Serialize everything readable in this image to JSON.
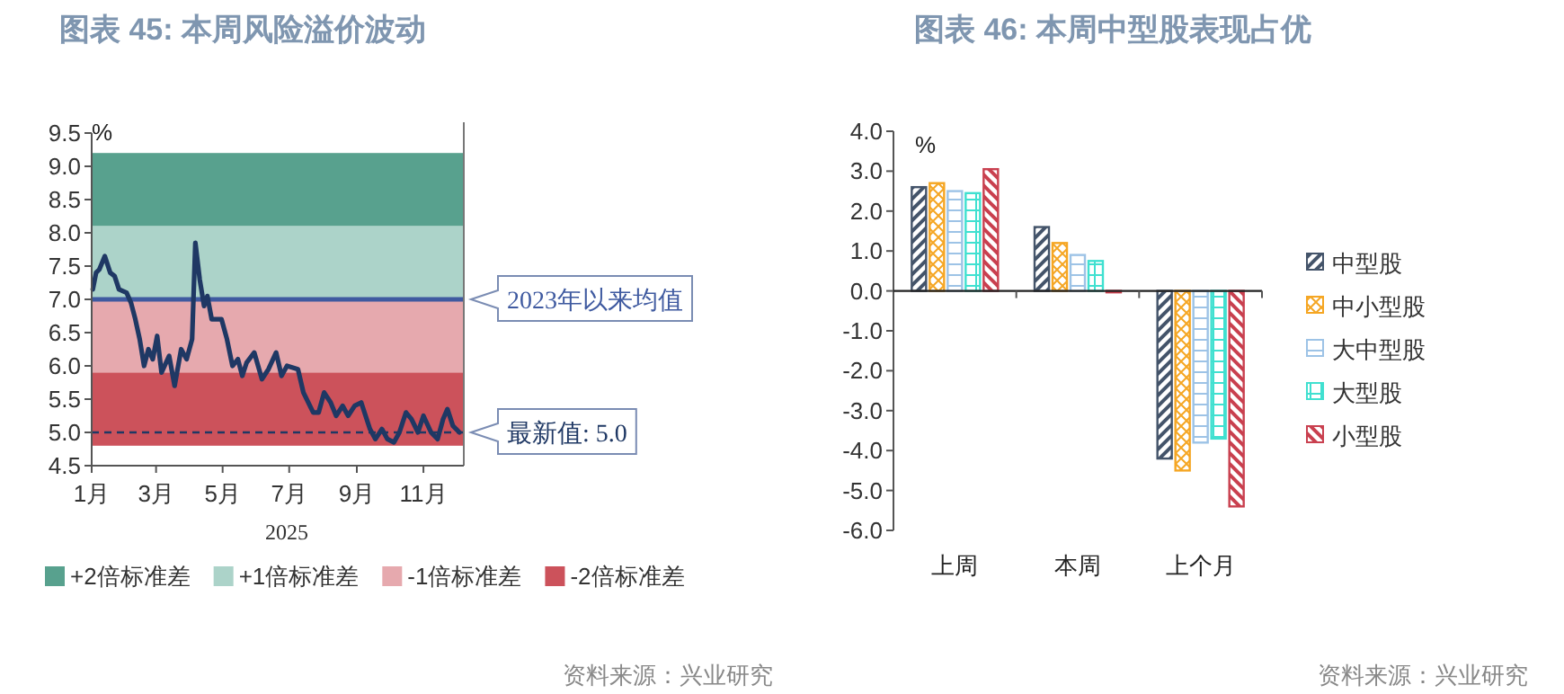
{
  "chart_data": [
    {
      "type": "line",
      "title": "图表 45: 本周风险溢价波动",
      "xlabel": "2025",
      "annotations": [
        "%",
        "资料来源：兴业研究"
      ],
      "x": [
        "2025-01-02",
        "2025-01-05",
        "2025-01-08",
        "2025-01-13",
        "2025-01-18",
        "2025-01-22",
        "2025-01-26",
        "2025-02-02",
        "2025-02-06",
        "2025-02-10",
        "2025-02-14",
        "2025-02-18",
        "2025-02-22",
        "2025-02-26",
        "2025-03-02",
        "2025-03-06",
        "2025-03-13",
        "2025-03-18",
        "2025-03-24",
        "2025-03-29",
        "2025-04-03",
        "2025-04-06",
        "2025-04-10",
        "2025-04-14",
        "2025-04-17",
        "2025-04-21",
        "2025-04-30",
        "2025-05-05",
        "2025-05-10",
        "2025-05-15",
        "2025-05-19",
        "2025-05-23",
        "2025-05-30",
        "2025-06-06",
        "2025-06-12",
        "2025-06-19",
        "2025-06-24",
        "2025-06-29",
        "2025-07-09",
        "2025-07-14",
        "2025-07-23",
        "2025-07-28",
        "2025-08-02",
        "2025-08-08",
        "2025-08-13",
        "2025-08-19",
        "2025-08-24",
        "2025-08-30",
        "2025-09-05",
        "2025-09-13",
        "2025-09-18",
        "2025-09-24",
        "2025-09-29",
        "2025-10-05",
        "2025-10-10",
        "2025-10-16",
        "2025-10-21",
        "2025-10-27",
        "2025-11-01",
        "2025-11-08",
        "2025-11-14",
        "2025-11-19",
        "2025-11-23",
        "2025-11-28",
        "2025-12-04"
      ],
      "series": [
        {
          "color": "#1f3864",
          "values": [
            7.15,
            7.4,
            7.45,
            7.65,
            7.4,
            7.35,
            7.15,
            7.1,
            6.95,
            6.7,
            6.4,
            6.0,
            6.25,
            6.1,
            6.45,
            5.9,
            6.15,
            5.7,
            6.25,
            6.1,
            6.4,
            7.85,
            7.3,
            6.9,
            7.05,
            6.7,
            6.7,
            6.4,
            6.0,
            6.1,
            5.85,
            6.05,
            6.2,
            5.8,
            5.95,
            6.2,
            5.85,
            6.0,
            5.95,
            5.6,
            5.3,
            5.3,
            5.6,
            5.45,
            5.25,
            5.4,
            5.25,
            5.4,
            5.45,
            5.05,
            4.9,
            5.05,
            4.9,
            4.85,
            5.0,
            5.3,
            5.2,
            5.0,
            5.25,
            5.0,
            4.9,
            5.2,
            5.35,
            5.1,
            5.0
          ]
        }
      ],
      "xlim": [
        "2025-01-01",
        "2025-12-08"
      ],
      "xticks": [
        {
          "value": "2025-01-01",
          "label": "1月"
        },
        {
          "value": "2025-03-01",
          "label": "3月"
        },
        {
          "value": "2025-05-01",
          "label": "5月"
        },
        {
          "value": "2025-07-01",
          "label": "7月"
        },
        {
          "value": "2025-09-01",
          "label": "9月"
        },
        {
          "value": "2025-11-01",
          "label": "11月"
        }
      ],
      "ylim": [
        4.5,
        9.5
      ],
      "yticks": [
        {
          "value": 4.5,
          "label": "4.5"
        },
        {
          "value": 5,
          "label": "5.0"
        },
        {
          "value": 5.5,
          "label": "5.5"
        },
        {
          "value": 6,
          "label": "6.0"
        },
        {
          "value": 6.5,
          "label": "6.5"
        },
        {
          "value": 7,
          "label": "7.0"
        },
        {
          "value": 7.5,
          "label": "7.5"
        },
        {
          "value": 8,
          "label": "8.0"
        },
        {
          "value": 8.5,
          "label": "8.5"
        },
        {
          "value": 9,
          "label": "9.0"
        },
        {
          "value": 9.5,
          "label": "9.5"
        }
      ],
      "bands": [
        {
          "axis": "y",
          "from": 8.1,
          "to": 9.2,
          "label": "+2倍标准差",
          "color": "#58a18e"
        },
        {
          "axis": "y",
          "from": 7.0,
          "to": 8.1,
          "label": "+1倍标准差",
          "color": "#acd3c9"
        },
        {
          "axis": "y",
          "from": 5.9,
          "to": 7.0,
          "label": "-1倍标准差",
          "color": "#e6a9ae"
        },
        {
          "axis": "y",
          "from": 4.8,
          "to": 5.9,
          "label": "-2倍标准差",
          "color": "#cc525b"
        }
      ],
      "ref_lines": [
        {
          "axis": "y",
          "value": 7.0,
          "label": "2023年以来均值",
          "color": "#3f5aa0",
          "line_style": "solid"
        },
        {
          "axis": "y",
          "value": 5.0,
          "label": "最新值: 5.0",
          "color": "#1f3864",
          "line_style": "dashed"
        }
      ],
      "legend": "bottom",
      "grid": false
    },
    {
      "type": "bar",
      "title": "图表 46: 本周中型股表现占优",
      "annotations": [
        "%",
        "资料来源：兴业研究"
      ],
      "categories": [
        "上周",
        "本周",
        "上个月"
      ],
      "series": [
        {
          "name": "中型股",
          "color": "#44546a",
          "values": [
            2.6,
            1.6,
            -4.2
          ]
        },
        {
          "name": "中小型股",
          "color": "#f5a623",
          "values": [
            2.7,
            1.2,
            -4.5
          ]
        },
        {
          "name": "大中型股",
          "color": "#9dc3e6",
          "values": [
            2.5,
            0.9,
            -3.8
          ]
        },
        {
          "name": "大型股",
          "color": "#40e0d0",
          "values": [
            2.45,
            0.75,
            -3.7
          ]
        },
        {
          "name": "小型股",
          "color": "#c9404f",
          "values": [
            3.05,
            0,
            -5.4
          ]
        }
      ],
      "ylim": [
        -6,
        4
      ],
      "yticks": [
        {
          "value": -6,
          "label": "-6.0"
        },
        {
          "value": -5,
          "label": "-5.0"
        },
        {
          "value": -4,
          "label": "-4.0"
        },
        {
          "value": -3,
          "label": "-3.0"
        },
        {
          "value": -2,
          "label": "-2.0"
        },
        {
          "value": -1,
          "label": "-1.0"
        },
        {
          "value": 0,
          "label": "0.0"
        },
        {
          "value": 1,
          "label": "1.0"
        },
        {
          "value": 2,
          "label": "2.0"
        },
        {
          "value": 3,
          "label": "3.0"
        },
        {
          "value": 4,
          "label": "4.0"
        }
      ],
      "legend": "right"
    }
  ]
}
